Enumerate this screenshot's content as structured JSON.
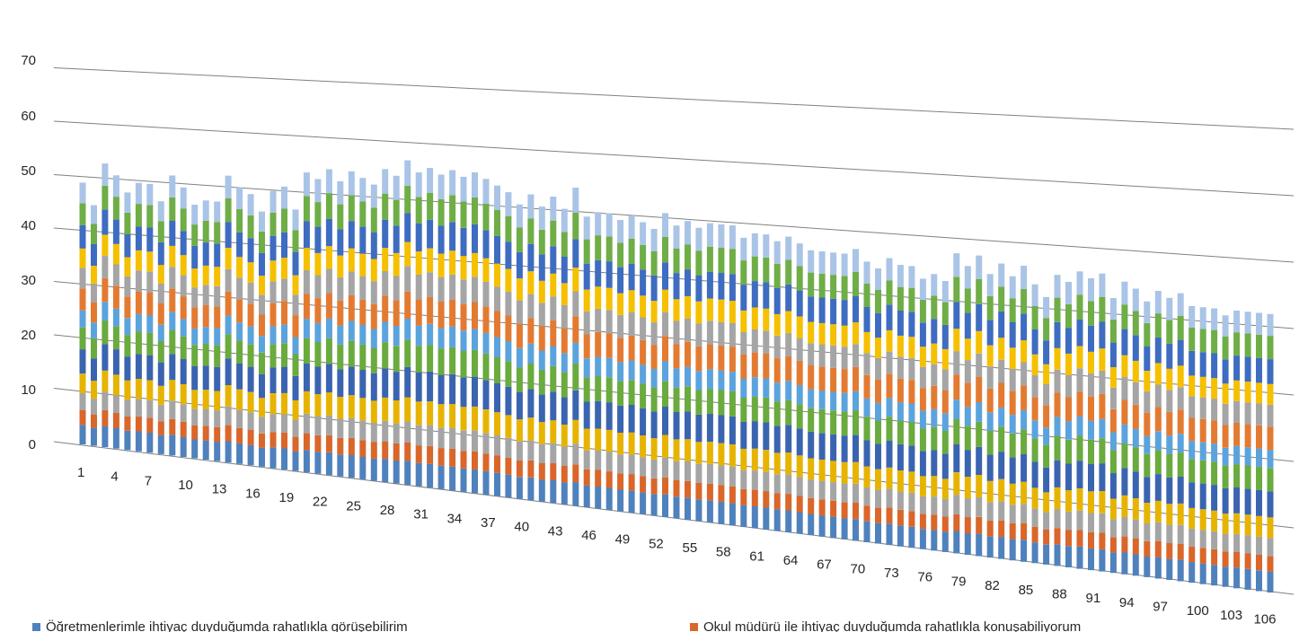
{
  "chart_data": {
    "type": "bar",
    "stacked": true,
    "three_d": true,
    "categories_count": 107,
    "x_tick_labels": [
      "1",
      "4",
      "7",
      "10",
      "13",
      "16",
      "19",
      "22",
      "25",
      "28",
      "31",
      "34",
      "37",
      "40",
      "43",
      "46",
      "49",
      "52",
      "55",
      "58",
      "61",
      "64",
      "67",
      "70",
      "73",
      "76",
      "79",
      "82",
      "85",
      "88",
      "91",
      "94",
      "97",
      "100",
      "103",
      "106"
    ],
    "y_tick_labels": [
      "0",
      "10",
      "20",
      "30",
      "40",
      "50",
      "60",
      "70"
    ],
    "ylim": [
      0,
      70
    ],
    "grid": true,
    "legend_position": "bottom",
    "series_colors": [
      "#4f81bd",
      "#d9662a",
      "#a5a5a5",
      "#e6b400",
      "#3a64b0",
      "#6aaa3e",
      "#5ba3dd",
      "#e37a32",
      "#a5a5a5",
      "#f5c000",
      "#3e6cc0",
      "#6fad47",
      "#a9c4e6"
    ],
    "series": [
      {
        "name": "Öğretmenlerimle ihtiyaç duyduğumda rahatlıkla görüşebilirim",
        "color": "#4f81bd"
      },
      {
        "name": "Okul müdürü ile ihtiyaç duyduğumda rahatlıkla konuşabiliyorum",
        "color": "#d9662a"
      },
      {
        "color": "#a5a5a5"
      },
      {
        "color": "#e6b400"
      },
      {
        "color": "#3a64b0"
      },
      {
        "color": "#6aaa3e"
      },
      {
        "color": "#5ba3dd"
      },
      {
        "color": "#e37a32"
      },
      {
        "color": "#a5a5a5"
      },
      {
        "color": "#f5c000"
      },
      {
        "color": "#3e6cc0"
      },
      {
        "color": "#6fad47"
      },
      {
        "color": "#a9c4e6"
      }
    ],
    "totals_sample": [
      49,
      45,
      53,
      51,
      48,
      50,
      50,
      47,
      52,
      50,
      47,
      48,
      48,
      53,
      51,
      50,
      47,
      51,
      52,
      48,
      55,
      54,
      56,
      54,
      56,
      55,
      54,
      57,
      56,
      59,
      57,
      58,
      57,
      58,
      57,
      58,
      57,
      56,
      55,
      53,
      55,
      53,
      55,
      53,
      57,
      52,
      53,
      53,
      52,
      53,
      52,
      51,
      54,
      52,
      53,
      52,
      53,
      53,
      53,
      51,
      52,
      52,
      51,
      52,
      51,
      50,
      50,
      50,
      50,
      51,
      49,
      48,
      50,
      49,
      49,
      47,
      48,
      47,
      52,
      50,
      52,
      49,
      51,
      49,
      51,
      48,
      46,
      50,
      49,
      51,
      50,
      51,
      47,
      50,
      49,
      47,
      49,
      48,
      49,
      47,
      47,
      47,
      46,
      47,
      47,
      47,
      47
    ],
    "values_note": ""
  },
  "legend": {
    "item1_label": "Öğretmenlerimle ihtiyaç duyduğumda rahatlıkla görüşebilirim",
    "item2_label": "Okul müdürü ile ihtiyaç duyduğumda rahatlıkla konuşabiliyorum"
  }
}
